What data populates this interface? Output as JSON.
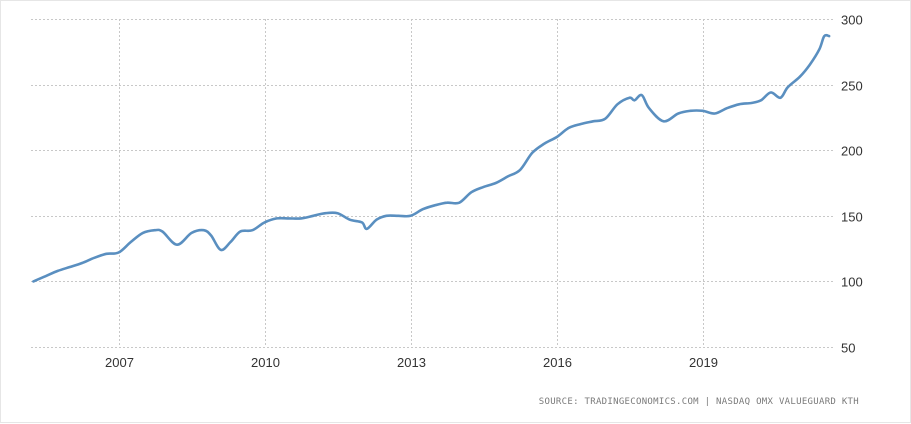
{
  "chart_data": {
    "type": "line",
    "title": "",
    "xlabel": "",
    "ylabel": "",
    "xlim": [
      2005.2,
      2021.7
    ],
    "ylim": [
      50,
      300
    ],
    "x_ticks": [
      2007,
      2010,
      2013,
      2016,
      2019
    ],
    "y_ticks": [
      50,
      100,
      150,
      200,
      250,
      300
    ],
    "y_axis_side": "right",
    "grid": true,
    "legend": "none",
    "line_color": "#5a8fc0",
    "source": "SOURCE: TRADINGECONOMICS.COM  |  NASDAQ OMX VALUEGUARD KTH",
    "series": [
      {
        "x": [
          2005.25,
          2005.5,
          2005.75,
          2006.0,
          2006.25,
          2006.5,
          2006.75,
          2007.0,
          2007.25,
          2007.5,
          2007.75,
          2007.9,
          2008.2,
          2008.5,
          2008.75,
          2008.9,
          2009.1,
          2009.3,
          2009.5,
          2009.75,
          2010.0,
          2010.25,
          2010.5,
          2010.75,
          2011.0,
          2011.25,
          2011.5,
          2011.75,
          2012.0,
          2012.1,
          2012.3,
          2012.5,
          2012.75,
          2013.0,
          2013.25,
          2013.5,
          2013.75,
          2014.0,
          2014.25,
          2014.5,
          2014.75,
          2015.0,
          2015.25,
          2015.5,
          2015.75,
          2016.0,
          2016.25,
          2016.5,
          2016.75,
          2017.0,
          2017.25,
          2017.5,
          2017.6,
          2017.75,
          2017.9,
          2018.2,
          2018.5,
          2018.75,
          2019.0,
          2019.25,
          2019.5,
          2019.75,
          2020.0,
          2020.2,
          2020.4,
          2020.6,
          2020.75,
          2021.0,
          2021.2,
          2021.4,
          2021.5,
          2021.6
        ],
        "values": [
          100,
          104,
          108,
          111,
          114,
          118,
          121,
          122,
          130,
          137,
          139,
          138,
          128,
          137,
          139,
          135,
          124,
          130,
          138,
          139,
          145,
          148,
          148,
          148,
          150,
          152,
          152,
          147,
          145,
          140,
          147,
          150,
          150,
          150,
          155,
          158,
          160,
          160,
          168,
          172,
          175,
          180,
          185,
          198,
          205,
          210,
          217,
          220,
          222,
          224,
          235,
          240,
          238,
          242,
          232,
          222,
          228,
          230,
          230,
          228,
          232,
          235,
          236,
          238,
          244,
          240,
          248,
          256,
          265,
          277,
          287,
          287
        ]
      }
    ]
  }
}
